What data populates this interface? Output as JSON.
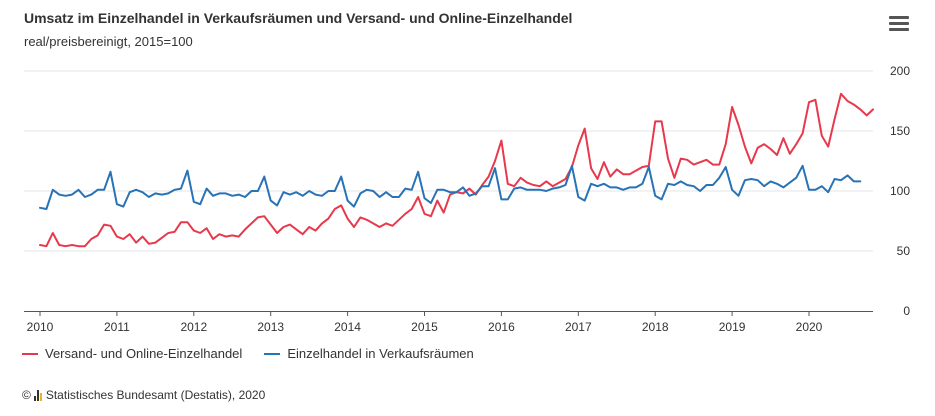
{
  "header": {
    "title": "Umsatz im Einzelhandel in Verkaufsräumen und Versand- und Online-Einzelhandel",
    "subtitle": "real/preisbereinigt, 2015=100",
    "menu_icon": "hamburger-menu-icon"
  },
  "credits": {
    "copyright_symbol": "©",
    "text": "Statistisches Bundesamt (Destatis), 2020",
    "logo_icon": "destatis-logo-icon"
  },
  "chart_data": {
    "type": "line",
    "title": "Umsatz im Einzelhandel in Verkaufsräumen und Versand- und Online-Einzelhandel",
    "subtitle": "real/preisbereinigt, 2015=100",
    "x_start": "2010-01",
    "x_frequency": "monthly",
    "x_ticks": [
      "2010",
      "2011",
      "2012",
      "2013",
      "2014",
      "2015",
      "2016",
      "2017",
      "2018",
      "2019",
      "2020"
    ],
    "y_ticks": [
      "0",
      "50",
      "100",
      "150",
      "200"
    ],
    "ylim": [
      0,
      200
    ],
    "y_axis_side": "right",
    "grid": true,
    "legend_position": "bottom-left",
    "series": [
      {
        "name": "Versand- und Online-Einzelhandel",
        "color": "#e8394c",
        "values": [
          55,
          54,
          65,
          55,
          54,
          55,
          54,
          54,
          60,
          63,
          72,
          71,
          62,
          60,
          64,
          57,
          62,
          56,
          57,
          61,
          65,
          66,
          74,
          74,
          67,
          65,
          69,
          60,
          64,
          62,
          63,
          62,
          68,
          73,
          78,
          79,
          72,
          65,
          70,
          72,
          68,
          64,
          70,
          67,
          73,
          77,
          85,
          88,
          77,
          70,
          78,
          76,
          73,
          70,
          73,
          71,
          76,
          81,
          85,
          95,
          81,
          79,
          92,
          82,
          97,
          99,
          98,
          102,
          97,
          105,
          112,
          125,
          142,
          106,
          104,
          111,
          107,
          105,
          104,
          108,
          104,
          107,
          110,
          120,
          138,
          152,
          119,
          110,
          124,
          112,
          118,
          114,
          114,
          117,
          120,
          121,
          158,
          158,
          127,
          111,
          127,
          126,
          122,
          124,
          126,
          122,
          122,
          139,
          170,
          155,
          137,
          123,
          136,
          139,
          135,
          130,
          144,
          131,
          139,
          148,
          174,
          176,
          146,
          137,
          160,
          181,
          175,
          172,
          168,
          163,
          168
        ]
      },
      {
        "name": "Einzelhandel in Verkaufsräumen",
        "color": "#2872b6",
        "values": [
          86,
          85,
          101,
          97,
          96,
          97,
          101,
          95,
          97,
          101,
          101,
          116,
          89,
          87,
          99,
          101,
          99,
          95,
          98,
          97,
          98,
          101,
          102,
          117,
          91,
          89,
          102,
          96,
          98,
          98,
          96,
          97,
          95,
          100,
          100,
          112,
          92,
          88,
          99,
          97,
          99,
          96,
          100,
          97,
          96,
          100,
          100,
          112,
          92,
          87,
          98,
          101,
          100,
          95,
          99,
          95,
          95,
          102,
          101,
          116,
          94,
          90,
          101,
          101,
          99,
          99,
          103,
          96,
          98,
          104,
          104,
          119,
          93,
          93,
          102,
          103,
          101,
          101,
          101,
          100,
          102,
          103,
          105,
          121,
          95,
          92,
          106,
          104,
          106,
          103,
          103,
          101,
          103,
          103,
          106,
          120,
          96,
          93,
          106,
          105,
          108,
          105,
          104,
          100,
          105,
          105,
          111,
          120,
          101,
          96,
          109,
          110,
          109,
          104,
          108,
          106,
          103,
          107,
          111,
          121,
          101,
          101,
          104,
          99,
          110,
          109,
          113,
          108,
          108
        ]
      }
    ]
  }
}
